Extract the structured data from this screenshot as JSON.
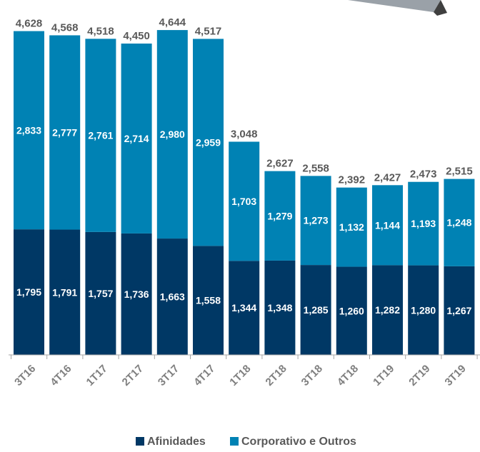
{
  "chart_data": {
    "type": "bar",
    "stacked": true,
    "categories": [
      "3T16",
      "4T16",
      "1T17",
      "2T17",
      "3T17",
      "4T17",
      "1T18",
      "2T18",
      "3T18",
      "4T18",
      "1T19",
      "2T19",
      "3T19"
    ],
    "series": [
      {
        "name": "Afinidades",
        "color": "#003865",
        "values": [
          1795,
          1791,
          1757,
          1736,
          1663,
          1558,
          1344,
          1348,
          1285,
          1260,
          1282,
          1280,
          1267
        ],
        "labels": [
          "1,795",
          "1,791",
          "1,757",
          "1,736",
          "1,663",
          "1,558",
          "1,344",
          "1,348",
          "1,285",
          "1,260",
          "1,282",
          "1,280",
          "1,267"
        ]
      },
      {
        "name": "Corporativo e Outros",
        "color": "#0082b4",
        "values": [
          2833,
          2777,
          2761,
          2714,
          2980,
          2959,
          1703,
          1279,
          1273,
          1132,
          1144,
          1193,
          1248
        ],
        "labels": [
          "2,833",
          "2,777",
          "2,761",
          "2,714",
          "2,980",
          "2,959",
          "1,703",
          "1,279",
          "1,273",
          "1,132",
          "1,144",
          "1,193",
          "1,248"
        ]
      }
    ],
    "totals": [
      4628,
      4568,
      4518,
      4450,
      4644,
      4517,
      3048,
      2627,
      2558,
      2392,
      2427,
      2473,
      2515
    ],
    "total_labels": [
      "4,628",
      "4,568",
      "4,518",
      "4,450",
      "4,644",
      "4,517",
      "3,048",
      "2,627",
      "2,558",
      "2,392",
      "2,427",
      "2,473",
      "2,515"
    ],
    "ylim": [
      0,
      4644
    ],
    "grid": false,
    "legend_position": "bottom"
  }
}
